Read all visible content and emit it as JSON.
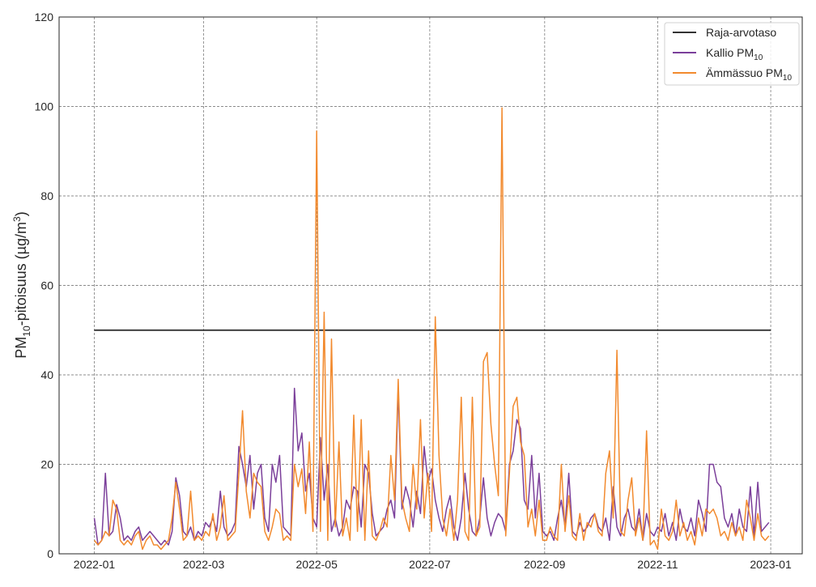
{
  "chart_data": {
    "type": "line",
    "title": "",
    "xlabel": "",
    "ylabel": {
      "main": "PM",
      "sub": "10",
      "rest": "-pitoisuus (µg/m",
      "sup": "3",
      "end": ")"
    },
    "ylim": [
      0,
      120
    ],
    "xlim": [
      "2021-12-13",
      "2023-01-18"
    ],
    "yticks": [
      0,
      20,
      40,
      60,
      80,
      100,
      120
    ],
    "xticks": [
      "2022-01",
      "2022-03",
      "2022-05",
      "2022-07",
      "2022-09",
      "2022-11",
      "2023-01"
    ],
    "grid": true,
    "legend_placement": "top-right",
    "x": [
      "2022-01-01",
      "2022-01-03",
      "2022-01-05",
      "2022-01-07",
      "2022-01-09",
      "2022-01-11",
      "2022-01-13",
      "2022-01-15",
      "2022-01-17",
      "2022-01-19",
      "2022-01-21",
      "2022-01-23",
      "2022-01-25",
      "2022-01-27",
      "2022-01-29",
      "2022-01-31",
      "2022-02-02",
      "2022-02-04",
      "2022-02-06",
      "2022-02-08",
      "2022-02-10",
      "2022-02-12",
      "2022-02-14",
      "2022-02-16",
      "2022-02-18",
      "2022-02-20",
      "2022-02-22",
      "2022-02-24",
      "2022-02-26",
      "2022-02-28",
      "2022-03-02",
      "2022-03-04",
      "2022-03-06",
      "2022-03-08",
      "2022-03-10",
      "2022-03-12",
      "2022-03-14",
      "2022-03-16",
      "2022-03-18",
      "2022-03-20",
      "2022-03-22",
      "2022-03-24",
      "2022-03-26",
      "2022-03-28",
      "2022-03-30",
      "2022-04-01",
      "2022-04-03",
      "2022-04-05",
      "2022-04-07",
      "2022-04-09",
      "2022-04-11",
      "2022-04-13",
      "2022-04-15",
      "2022-04-17",
      "2022-04-19",
      "2022-04-21",
      "2022-04-23",
      "2022-04-25",
      "2022-04-27",
      "2022-04-29",
      "2022-05-01",
      "2022-05-03",
      "2022-05-05",
      "2022-05-07",
      "2022-05-09",
      "2022-05-11",
      "2022-05-13",
      "2022-05-15",
      "2022-05-17",
      "2022-05-19",
      "2022-05-21",
      "2022-05-23",
      "2022-05-25",
      "2022-05-27",
      "2022-05-29",
      "2022-05-31",
      "2022-06-02",
      "2022-06-04",
      "2022-06-06",
      "2022-06-08",
      "2022-06-10",
      "2022-06-12",
      "2022-06-14",
      "2022-06-16",
      "2022-06-18",
      "2022-06-20",
      "2022-06-22",
      "2022-06-24",
      "2022-06-26",
      "2022-06-28",
      "2022-06-30",
      "2022-07-02",
      "2022-07-04",
      "2022-07-06",
      "2022-07-08",
      "2022-07-10",
      "2022-07-12",
      "2022-07-14",
      "2022-07-16",
      "2022-07-18",
      "2022-07-20",
      "2022-07-22",
      "2022-07-24",
      "2022-07-26",
      "2022-07-28",
      "2022-07-30",
      "2022-08-01",
      "2022-08-03",
      "2022-08-05",
      "2022-08-07",
      "2022-08-09",
      "2022-08-11",
      "2022-08-13",
      "2022-08-15",
      "2022-08-17",
      "2022-08-19",
      "2022-08-21",
      "2022-08-23",
      "2022-08-25",
      "2022-08-27",
      "2022-08-29",
      "2022-08-31",
      "2022-09-02",
      "2022-09-04",
      "2022-09-06",
      "2022-09-08",
      "2022-09-10",
      "2022-09-12",
      "2022-09-14",
      "2022-09-16",
      "2022-09-18",
      "2022-09-20",
      "2022-09-22",
      "2022-09-24",
      "2022-09-26",
      "2022-09-28",
      "2022-09-30",
      "2022-10-02",
      "2022-10-04",
      "2022-10-06",
      "2022-10-08",
      "2022-10-10",
      "2022-10-12",
      "2022-10-14",
      "2022-10-16",
      "2022-10-18",
      "2022-10-20",
      "2022-10-22",
      "2022-10-24",
      "2022-10-26",
      "2022-10-28",
      "2022-10-30",
      "2022-11-01",
      "2022-11-03",
      "2022-11-05",
      "2022-11-07",
      "2022-11-09",
      "2022-11-11",
      "2022-11-13",
      "2022-11-15",
      "2022-11-17",
      "2022-11-19",
      "2022-11-21",
      "2022-11-23",
      "2022-11-25",
      "2022-11-27",
      "2022-11-29",
      "2022-12-01",
      "2022-12-03",
      "2022-12-05",
      "2022-12-07",
      "2022-12-09",
      "2022-12-11",
      "2022-12-13",
      "2022-12-15",
      "2022-12-17",
      "2022-12-19",
      "2022-12-21",
      "2022-12-23",
      "2022-12-25",
      "2022-12-27",
      "2022-12-29",
      "2022-12-31"
    ],
    "series": [
      {
        "name": "Raja-arvotaso",
        "name_sub": "",
        "color": "#333333",
        "x": [
          "2022-01-01",
          "2023-01-01"
        ],
        "values": [
          50,
          50
        ]
      },
      {
        "name": "Kallio PM",
        "name_sub": "10",
        "color": "#7b3f9a",
        "values": [
          8,
          2,
          3,
          18,
          4,
          5,
          11,
          8,
          3,
          4,
          3,
          5,
          6,
          3,
          4,
          5,
          4,
          3,
          2,
          3,
          2,
          5,
          17,
          13,
          5,
          4,
          6,
          3,
          5,
          4,
          7,
          6,
          8,
          5,
          14,
          6,
          4,
          5,
          7,
          24,
          20,
          15,
          22,
          10,
          18,
          20,
          8,
          5,
          20,
          16,
          22,
          6,
          5,
          4,
          37,
          23,
          27,
          14,
          18,
          8,
          6,
          26,
          12,
          20,
          5,
          8,
          4,
          6,
          12,
          10,
          15,
          14,
          6,
          20,
          18,
          9,
          4,
          5,
          6,
          10,
          12,
          8,
          37,
          10,
          15,
          12,
          6,
          14,
          9,
          24,
          16,
          19,
          12,
          8,
          5,
          10,
          13,
          6,
          3,
          8,
          18,
          10,
          5,
          4,
          8,
          17,
          8,
          4,
          7,
          9,
          8,
          5,
          20,
          23,
          30,
          28,
          12,
          10,
          22,
          8,
          18,
          5,
          4,
          5,
          3,
          8,
          12,
          6,
          18,
          5,
          4,
          7,
          5,
          6,
          8,
          9,
          6,
          5,
          8,
          3,
          15,
          6,
          4,
          8,
          10,
          6,
          5,
          10,
          3,
          9,
          5,
          4,
          6,
          5,
          9,
          4,
          7,
          3,
          10,
          6,
          5,
          8,
          4,
          12,
          9,
          5,
          20,
          20,
          16,
          15,
          8,
          6,
          9,
          4,
          10,
          6,
          5,
          15,
          4,
          16,
          5,
          6,
          7
        ]
      },
      {
        "name": "Ämmässuo PM",
        "name_sub": "10",
        "color": "#f28a2e",
        "values": [
          3,
          2,
          3,
          5,
          4,
          12,
          10,
          3,
          2,
          3,
          2,
          4,
          5,
          1,
          3,
          4,
          2,
          2,
          1,
          2,
          3,
          8,
          16,
          10,
          3,
          4,
          14,
          3,
          4,
          3,
          5,
          4,
          9,
          3,
          6,
          13,
          3,
          4,
          5,
          18,
          32,
          14,
          8,
          18,
          16,
          15,
          5,
          3,
          6,
          10,
          9,
          3,
          4,
          3,
          20,
          15,
          19,
          9,
          25,
          5,
          94.5,
          5,
          54,
          3,
          48,
          6,
          25,
          4,
          8,
          3,
          31,
          5,
          30,
          3,
          23,
          4,
          3,
          5,
          8,
          6,
          22,
          12,
          39,
          12,
          8,
          5,
          20,
          10,
          30,
          8,
          18,
          5,
          53,
          22,
          8,
          4,
          10,
          3,
          12,
          35,
          5,
          3,
          35,
          4,
          6,
          43,
          45,
          29,
          20,
          13,
          99.7,
          4,
          18,
          33,
          35,
          25,
          22,
          6,
          10,
          4,
          12,
          3,
          3,
          6,
          4,
          3,
          20,
          5,
          13,
          4,
          3,
          9,
          3,
          7,
          6,
          9,
          5,
          4,
          18,
          23,
          8,
          45.5,
          5,
          4,
          12,
          17,
          4,
          8,
          3,
          27.5,
          2,
          3,
          1,
          10,
          4,
          3,
          5,
          12,
          4,
          7,
          3,
          5,
          2,
          8,
          4,
          10,
          9,
          10,
          8,
          4,
          5,
          3,
          7,
          4,
          6,
          3,
          12,
          8,
          3,
          9,
          4,
          3,
          4
        ]
      }
    ]
  }
}
